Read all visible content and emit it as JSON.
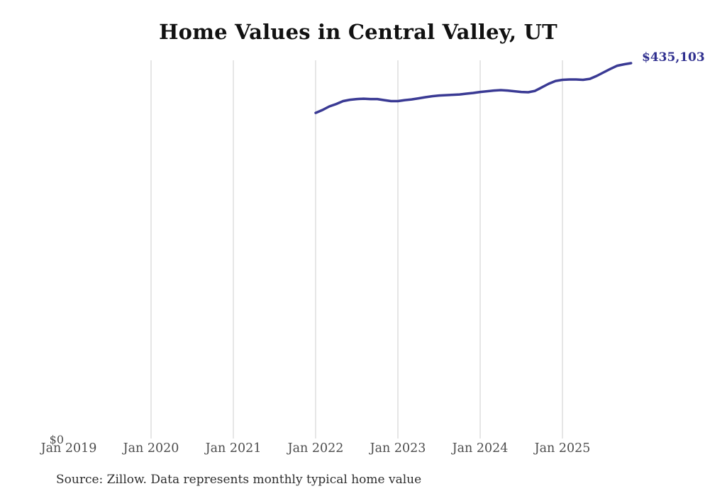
{
  "source": {
    "text": "Source: Zillow. Data represents monthly typical home value"
  },
  "colors": {
    "line": "#3a3a94",
    "latest_label": "#2f2f8f",
    "gridline": "#cccccc",
    "axis_text": "#4d4d4d",
    "title_text": "#111111",
    "source_text": "#2e2e2e",
    "background": "#ffffff"
  },
  "chart_data": {
    "type": "line",
    "title": "Home Values in Central Valley, UT",
    "xlabel": "",
    "ylabel": "",
    "grid": "vertical-only",
    "legend": "none",
    "x_axis_start": "2019-01",
    "x_axis_tick_labels": [
      "Jan 2019",
      "Jan 2020",
      "Jan 2021",
      "Jan 2022",
      "Jan 2023",
      "Jan 2024",
      "Jan 2025"
    ],
    "gridline_years": [
      2020,
      2021,
      2022,
      2023,
      2024,
      2025
    ],
    "y_tick_labels": [
      "$0"
    ],
    "ylim": [
      0,
      440000
    ],
    "latest_value_label": "$435,103",
    "latest_value": 435103,
    "cadence": "monthly",
    "x_start_month": "2022-01",
    "x_end_month": "2025-11",
    "months": [
      "2022-01",
      "2022-02",
      "2022-03",
      "2022-04",
      "2022-05",
      "2022-06",
      "2022-07",
      "2022-08",
      "2022-09",
      "2022-10",
      "2022-11",
      "2022-12",
      "2023-01",
      "2023-02",
      "2023-03",
      "2023-04",
      "2023-05",
      "2023-06",
      "2023-07",
      "2023-08",
      "2023-09",
      "2023-10",
      "2023-11",
      "2023-12",
      "2024-01",
      "2024-02",
      "2024-03",
      "2024-04",
      "2024-05",
      "2024-06",
      "2024-07",
      "2024-08",
      "2024-09",
      "2024-10",
      "2024-11",
      "2024-12",
      "2025-01",
      "2025-02",
      "2025-03",
      "2025-04",
      "2025-05",
      "2025-06",
      "2025-07",
      "2025-08",
      "2025-09",
      "2025-10",
      "2025-11"
    ],
    "values": [
      377900,
      381200,
      385300,
      388100,
      391400,
      393000,
      393800,
      394200,
      393800,
      393800,
      392600,
      391400,
      391400,
      392600,
      393400,
      394600,
      395900,
      397100,
      397900,
      398300,
      398700,
      399100,
      400000,
      400800,
      402000,
      402800,
      403600,
      404100,
      403600,
      402800,
      402000,
      401600,
      403200,
      407300,
      411400,
      414600,
      415900,
      416300,
      416300,
      415900,
      417100,
      420400,
      424500,
      428500,
      432200,
      433800,
      435103
    ]
  }
}
